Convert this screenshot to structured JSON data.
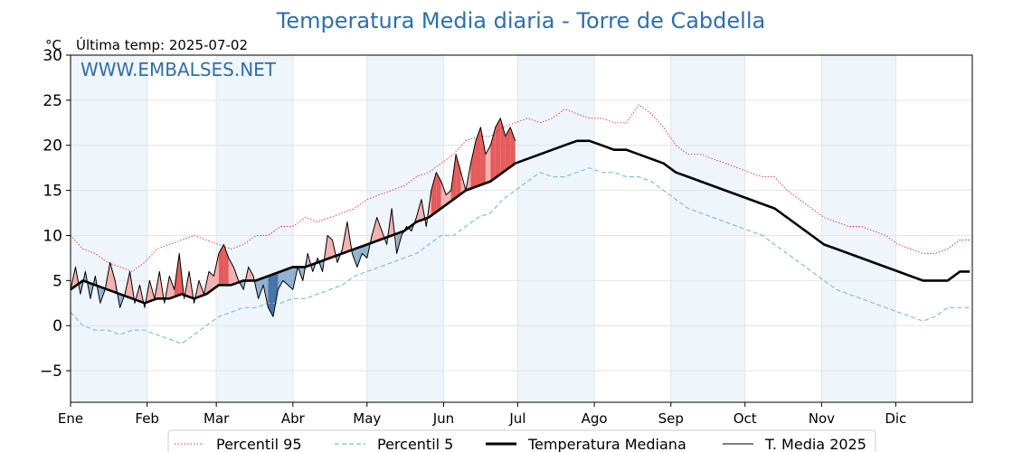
{
  "chart_data": {
    "type": "line",
    "title": "Temperatura Media diaria - Torre de Cabdella",
    "ylabel": "°C",
    "subtitle": "Última temp: 2025-07-02",
    "watermark": "WWW.EMBALSES.NET",
    "ylim": [
      -8.5,
      30
    ],
    "yticks": [
      -5,
      0,
      5,
      10,
      15,
      20,
      25,
      30
    ],
    "ytick_labels": [
      "−5",
      "0",
      "5",
      "10",
      "15",
      "20",
      "25",
      "30"
    ],
    "months": [
      "Ene",
      "Feb",
      "Mar",
      "Abr",
      "May",
      "Jun",
      "Jul",
      "Ago",
      "Sep",
      "Oct",
      "Nov",
      "Dic"
    ],
    "month_start_days": [
      0,
      31,
      59,
      90,
      120,
      151,
      181,
      212,
      243,
      273,
      304,
      334
    ],
    "days_in_year": 365,
    "grid": true,
    "legend_position": "bottom",
    "colors": {
      "p95": "#e8302a",
      "p5": "#7fbfd6",
      "median": "#000000",
      "current": "#000000",
      "above_fill": "#f4a3a3",
      "above_strong": "#e04040",
      "below_fill": "#7fa6c8",
      "below_strong": "#2a5e9a",
      "shade": "#eef5fb",
      "title": "#2f6fa8"
    },
    "series": [
      {
        "name": "Percentil 95",
        "style": "dotted",
        "points": [
          [
            0,
            10
          ],
          [
            5,
            8.5
          ],
          [
            10,
            8
          ],
          [
            15,
            7
          ],
          [
            20,
            6.5
          ],
          [
            25,
            6
          ],
          [
            30,
            7
          ],
          [
            35,
            8.5
          ],
          [
            40,
            9
          ],
          [
            45,
            9.5
          ],
          [
            50,
            10
          ],
          [
            55,
            9.5
          ],
          [
            60,
            9
          ],
          [
            65,
            8.5
          ],
          [
            70,
            9
          ],
          [
            75,
            10
          ],
          [
            80,
            10
          ],
          [
            85,
            11
          ],
          [
            90,
            11
          ],
          [
            95,
            12
          ],
          [
            100,
            11.5
          ],
          [
            105,
            12
          ],
          [
            110,
            12.5
          ],
          [
            115,
            13
          ],
          [
            120,
            14
          ],
          [
            125,
            14.5
          ],
          [
            130,
            15
          ],
          [
            135,
            15.5
          ],
          [
            140,
            16.5
          ],
          [
            145,
            17
          ],
          [
            150,
            18
          ],
          [
            155,
            19
          ],
          [
            160,
            20.5
          ],
          [
            165,
            21
          ],
          [
            170,
            21
          ],
          [
            175,
            22
          ],
          [
            180,
            22.5
          ],
          [
            185,
            23
          ],
          [
            190,
            22.5
          ],
          [
            195,
            23
          ],
          [
            200,
            24
          ],
          [
            205,
            23.5
          ],
          [
            210,
            23
          ],
          [
            215,
            23
          ],
          [
            220,
            22.5
          ],
          [
            225,
            22.5
          ],
          [
            230,
            24.5
          ],
          [
            235,
            23.5
          ],
          [
            240,
            22
          ],
          [
            245,
            20
          ],
          [
            250,
            19
          ],
          [
            255,
            19
          ],
          [
            260,
            18.5
          ],
          [
            265,
            18
          ],
          [
            270,
            17.5
          ],
          [
            275,
            17
          ],
          [
            280,
            16.5
          ],
          [
            285,
            16.5
          ],
          [
            290,
            15
          ],
          [
            295,
            14
          ],
          [
            300,
            13
          ],
          [
            305,
            12
          ],
          [
            310,
            11.5
          ],
          [
            315,
            11
          ],
          [
            320,
            11
          ],
          [
            325,
            10.5
          ],
          [
            330,
            10
          ],
          [
            335,
            9
          ],
          [
            340,
            8.5
          ],
          [
            345,
            8
          ],
          [
            350,
            8
          ],
          [
            355,
            8.5
          ],
          [
            360,
            9.5
          ],
          [
            364,
            9.5
          ]
        ]
      },
      {
        "name": "Percentil 5",
        "style": "dashed",
        "points": [
          [
            0,
            1.5
          ],
          [
            5,
            0
          ],
          [
            10,
            -0.5
          ],
          [
            15,
            -0.5
          ],
          [
            20,
            -1
          ],
          [
            25,
            -0.5
          ],
          [
            30,
            -0.5
          ],
          [
            35,
            -1
          ],
          [
            40,
            -1.5
          ],
          [
            45,
            -2
          ],
          [
            50,
            -1
          ],
          [
            55,
            0
          ],
          [
            60,
            1
          ],
          [
            65,
            1.5
          ],
          [
            70,
            2
          ],
          [
            75,
            2
          ],
          [
            80,
            2.5
          ],
          [
            85,
            2.5
          ],
          [
            90,
            3
          ],
          [
            95,
            3
          ],
          [
            100,
            3.5
          ],
          [
            105,
            4
          ],
          [
            110,
            4.5
          ],
          [
            115,
            5.5
          ],
          [
            120,
            6
          ],
          [
            125,
            6.5
          ],
          [
            130,
            7
          ],
          [
            135,
            7.5
          ],
          [
            140,
            8
          ],
          [
            145,
            9
          ],
          [
            150,
            10
          ],
          [
            155,
            10
          ],
          [
            160,
            11
          ],
          [
            165,
            12
          ],
          [
            170,
            12.5
          ],
          [
            175,
            14
          ],
          [
            180,
            15
          ],
          [
            185,
            16
          ],
          [
            190,
            17
          ],
          [
            195,
            16.5
          ],
          [
            200,
            16.5
          ],
          [
            205,
            17
          ],
          [
            210,
            17.5
          ],
          [
            215,
            17
          ],
          [
            220,
            17
          ],
          [
            225,
            16.5
          ],
          [
            230,
            16.5
          ],
          [
            235,
            16
          ],
          [
            240,
            15
          ],
          [
            245,
            14
          ],
          [
            250,
            13
          ],
          [
            255,
            12.5
          ],
          [
            260,
            12
          ],
          [
            265,
            11.5
          ],
          [
            270,
            11
          ],
          [
            275,
            10.5
          ],
          [
            280,
            10
          ],
          [
            285,
            9
          ],
          [
            290,
            8
          ],
          [
            295,
            7
          ],
          [
            300,
            6
          ],
          [
            305,
            5
          ],
          [
            310,
            4
          ],
          [
            315,
            3.5
          ],
          [
            320,
            3
          ],
          [
            325,
            2.5
          ],
          [
            330,
            2
          ],
          [
            335,
            1.5
          ],
          [
            340,
            1
          ],
          [
            345,
            0.5
          ],
          [
            350,
            1
          ],
          [
            355,
            2
          ],
          [
            360,
            2
          ],
          [
            364,
            2
          ]
        ]
      },
      {
        "name": "Temperatura Mediana",
        "style": "solid-thick",
        "points": [
          [
            0,
            4
          ],
          [
            5,
            5
          ],
          [
            10,
            4.5
          ],
          [
            15,
            4
          ],
          [
            20,
            3.5
          ],
          [
            25,
            3
          ],
          [
            30,
            2.5
          ],
          [
            35,
            3
          ],
          [
            40,
            3
          ],
          [
            45,
            3.5
          ],
          [
            50,
            3
          ],
          [
            55,
            3.5
          ],
          [
            60,
            4.5
          ],
          [
            65,
            4.5
          ],
          [
            70,
            5
          ],
          [
            75,
            5
          ],
          [
            80,
            5.5
          ],
          [
            85,
            6
          ],
          [
            90,
            6.5
          ],
          [
            95,
            6.5
          ],
          [
            100,
            7
          ],
          [
            105,
            7.5
          ],
          [
            110,
            8
          ],
          [
            115,
            8.5
          ],
          [
            120,
            9
          ],
          [
            125,
            9.5
          ],
          [
            130,
            10
          ],
          [
            135,
            10.5
          ],
          [
            140,
            11.5
          ],
          [
            145,
            12
          ],
          [
            150,
            13
          ],
          [
            155,
            14
          ],
          [
            160,
            15
          ],
          [
            165,
            15.5
          ],
          [
            170,
            16
          ],
          [
            175,
            17
          ],
          [
            180,
            18
          ],
          [
            185,
            18.5
          ],
          [
            190,
            19
          ],
          [
            195,
            19.5
          ],
          [
            200,
            20
          ],
          [
            205,
            20.5
          ],
          [
            210,
            20.5
          ],
          [
            215,
            20
          ],
          [
            220,
            19.5
          ],
          [
            225,
            19.5
          ],
          [
            230,
            19
          ],
          [
            235,
            18.5
          ],
          [
            240,
            18
          ],
          [
            245,
            17
          ],
          [
            250,
            16.5
          ],
          [
            255,
            16
          ],
          [
            260,
            15.5
          ],
          [
            265,
            15
          ],
          [
            270,
            14.5
          ],
          [
            275,
            14
          ],
          [
            280,
            13.5
          ],
          [
            285,
            13
          ],
          [
            290,
            12
          ],
          [
            295,
            11
          ],
          [
            300,
            10
          ],
          [
            305,
            9
          ],
          [
            310,
            8.5
          ],
          [
            315,
            8
          ],
          [
            320,
            7.5
          ],
          [
            325,
            7
          ],
          [
            330,
            6.5
          ],
          [
            335,
            6
          ],
          [
            340,
            5.5
          ],
          [
            345,
            5
          ],
          [
            350,
            5
          ],
          [
            355,
            5
          ],
          [
            360,
            6
          ],
          [
            364,
            6
          ]
        ]
      },
      {
        "name": "T. Media 2025",
        "style": "solid-thin",
        "points": [
          [
            0,
            4
          ],
          [
            2,
            6.5
          ],
          [
            4,
            3.5
          ],
          [
            6,
            6
          ],
          [
            8,
            3
          ],
          [
            10,
            5.5
          ],
          [
            12,
            2.5
          ],
          [
            14,
            4
          ],
          [
            16,
            7
          ],
          [
            18,
            5
          ],
          [
            20,
            2
          ],
          [
            22,
            3.5
          ],
          [
            24,
            6
          ],
          [
            26,
            2.5
          ],
          [
            28,
            4.5
          ],
          [
            30,
            2
          ],
          [
            32,
            5
          ],
          [
            34,
            3
          ],
          [
            36,
            6
          ],
          [
            38,
            2.5
          ],
          [
            40,
            5.5
          ],
          [
            42,
            4
          ],
          [
            44,
            8
          ],
          [
            46,
            3
          ],
          [
            48,
            6
          ],
          [
            50,
            2.5
          ],
          [
            52,
            5
          ],
          [
            54,
            3.5
          ],
          [
            56,
            6
          ],
          [
            58,
            5.5
          ],
          [
            60,
            8
          ],
          [
            62,
            9
          ],
          [
            64,
            7.5
          ],
          [
            66,
            6.5
          ],
          [
            68,
            5
          ],
          [
            70,
            4
          ],
          [
            72,
            6.5
          ],
          [
            74,
            5.5
          ],
          [
            76,
            3
          ],
          [
            78,
            4.5
          ],
          [
            80,
            2
          ],
          [
            82,
            1
          ],
          [
            84,
            4
          ],
          [
            86,
            5
          ],
          [
            88,
            4.5
          ],
          [
            90,
            4
          ],
          [
            92,
            6.5
          ],
          [
            94,
            5
          ],
          [
            96,
            8
          ],
          [
            98,
            6
          ],
          [
            100,
            7.5
          ],
          [
            102,
            6
          ],
          [
            104,
            10
          ],
          [
            106,
            9.5
          ],
          [
            108,
            7
          ],
          [
            110,
            8.5
          ],
          [
            112,
            11.5
          ],
          [
            114,
            8
          ],
          [
            116,
            6.5
          ],
          [
            118,
            8
          ],
          [
            120,
            7.5
          ],
          [
            122,
            10
          ],
          [
            124,
            12
          ],
          [
            126,
            10.5
          ],
          [
            128,
            9
          ],
          [
            130,
            13
          ],
          [
            132,
            8
          ],
          [
            134,
            10
          ],
          [
            136,
            11
          ],
          [
            138,
            10.5
          ],
          [
            140,
            12
          ],
          [
            142,
            14
          ],
          [
            144,
            11
          ],
          [
            146,
            15
          ],
          [
            148,
            17
          ],
          [
            150,
            16
          ],
          [
            152,
            14.5
          ],
          [
            154,
            15
          ],
          [
            156,
            19
          ],
          [
            158,
            17
          ],
          [
            160,
            15
          ],
          [
            162,
            18
          ],
          [
            164,
            20.5
          ],
          [
            166,
            22
          ],
          [
            168,
            19
          ],
          [
            170,
            20
          ],
          [
            172,
            22
          ],
          [
            174,
            23
          ],
          [
            176,
            21
          ],
          [
            178,
            22
          ],
          [
            180,
            20.5
          ]
        ]
      }
    ]
  },
  "legend": {
    "p95": "Percentil 95",
    "p5": "Percentil 5",
    "median": "Temperatura Mediana",
    "current": "T. Media 2025"
  }
}
